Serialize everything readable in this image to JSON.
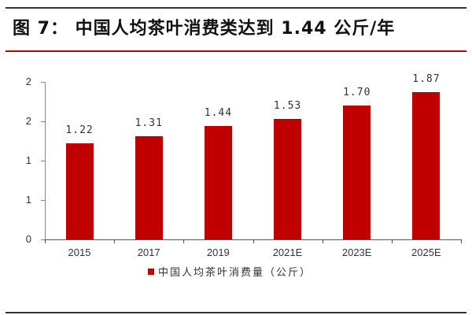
{
  "figure": {
    "title": "图 7： 中国人均茶叶消费类达到 1.44 公斤/年"
  },
  "chart_data": {
    "type": "bar",
    "title": "图 7： 中国人均茶叶消费类达到 1.44 公斤/年",
    "categories": [
      "2015",
      "2017",
      "2019",
      "2021E",
      "2023E",
      "2025E"
    ],
    "series": [
      {
        "name": "中国人均茶叶消费量（公斤）",
        "values": [
          1.22,
          1.31,
          1.44,
          1.53,
          1.7,
          1.87
        ],
        "labels": [
          "1.22",
          "1.31",
          "1.44",
          "1.53",
          "1.70",
          "1.87"
        ],
        "color": "#c00000"
      }
    ],
    "xlabel": "",
    "ylabel": "",
    "ylim": [
      0,
      2
    ],
    "yticks": [
      0,
      0.5,
      1,
      1.5,
      2
    ],
    "ytick_labels": [
      "0",
      "1",
      "1",
      "2",
      "2"
    ],
    "grid": false,
    "legend_position": "bottom"
  }
}
